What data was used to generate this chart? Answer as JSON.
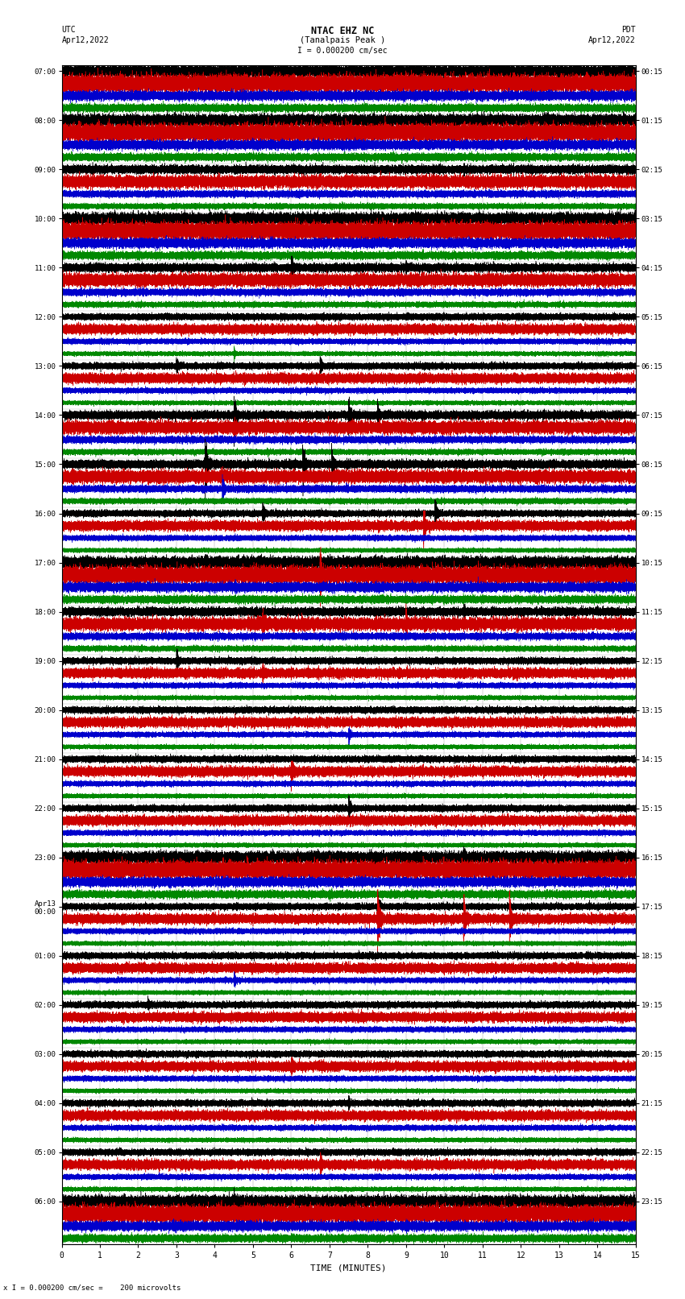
{
  "title_line1": "NTAC EHZ NC",
  "title_line2": "(Tanalpais Peak )",
  "title_scale": "I = 0.000200 cm/sec",
  "left_top_label": "UTC",
  "left_date": "Apr12,2022",
  "right_top_label": "PDT",
  "right_date": "Apr12,2022",
  "bottom_label": "TIME (MINUTES)",
  "bottom_note": "x I = 0.000200 cm/sec =    200 microvolts",
  "background_color": "#ffffff",
  "line_colors": [
    "#000000",
    "#cc0000",
    "#0000cc",
    "#008800"
  ],
  "utc_labels": [
    "07:00",
    "08:00",
    "09:00",
    "10:00",
    "11:00",
    "12:00",
    "13:00",
    "14:00",
    "15:00",
    "16:00",
    "17:00",
    "18:00",
    "19:00",
    "20:00",
    "21:00",
    "22:00",
    "23:00",
    "Apr13\n00:00",
    "01:00",
    "02:00",
    "03:00",
    "04:00",
    "05:00",
    "06:00"
  ],
  "pdt_labels": [
    "00:15",
    "01:15",
    "02:15",
    "03:15",
    "04:15",
    "05:15",
    "06:15",
    "07:15",
    "08:15",
    "09:15",
    "10:15",
    "11:15",
    "12:15",
    "13:15",
    "14:15",
    "15:15",
    "16:15",
    "17:15",
    "18:15",
    "19:15",
    "20:15",
    "21:15",
    "22:15",
    "23:15"
  ],
  "n_rows": 24,
  "n_traces_per_row": 4,
  "minutes": 15,
  "fig_width": 8.5,
  "fig_height": 16.13,
  "dpi": 100
}
